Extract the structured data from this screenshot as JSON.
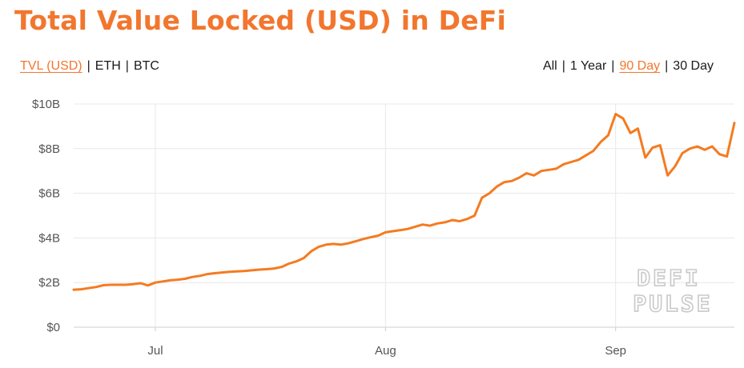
{
  "title": "Total Value Locked (USD) in DeFi",
  "unit_toggle": {
    "items": [
      {
        "label": "TVL (USD)",
        "active": true
      },
      {
        "label": "ETH",
        "active": false
      },
      {
        "label": "BTC",
        "active": false
      }
    ]
  },
  "range_toggle": {
    "items": [
      {
        "label": "All",
        "active": false
      },
      {
        "label": "1 Year",
        "active": false
      },
      {
        "label": "90 Day",
        "active": true
      },
      {
        "label": "30 Day",
        "active": false
      }
    ]
  },
  "watermark": [
    "DEFI",
    "PULSE"
  ],
  "colors": {
    "accent": "#f47b20",
    "title": "#f2762e"
  },
  "chart_data": {
    "type": "line",
    "title": "Total Value Locked (USD) in DeFi",
    "xlabel": "",
    "ylabel": "",
    "ylim": [
      0,
      10
    ],
    "xlim": [
      "2020-06-20",
      "2020-09-17"
    ],
    "y_ticks": [
      0,
      2,
      4,
      6,
      8,
      10
    ],
    "y_tick_labels": [
      "$0",
      "$2B",
      "$4B",
      "$6B",
      "$8B",
      "$10B"
    ],
    "x_ticks": [
      "2020-07-01",
      "2020-08-01",
      "2020-09-01"
    ],
    "x_tick_labels": [
      "Jul",
      "Aug",
      "Sep"
    ],
    "grid": true,
    "series": [
      {
        "values_unit": "USD billions",
        "x": [
          "2020-06-20",
          "2020-06-21",
          "2020-06-22",
          "2020-06-23",
          "2020-06-24",
          "2020-06-25",
          "2020-06-26",
          "2020-06-27",
          "2020-06-28",
          "2020-06-29",
          "2020-06-30",
          "2020-07-01",
          "2020-07-02",
          "2020-07-03",
          "2020-07-04",
          "2020-07-05",
          "2020-07-06",
          "2020-07-07",
          "2020-07-08",
          "2020-07-09",
          "2020-07-10",
          "2020-07-11",
          "2020-07-12",
          "2020-07-13",
          "2020-07-14",
          "2020-07-15",
          "2020-07-16",
          "2020-07-17",
          "2020-07-18",
          "2020-07-19",
          "2020-07-20",
          "2020-07-21",
          "2020-07-22",
          "2020-07-23",
          "2020-07-24",
          "2020-07-25",
          "2020-07-26",
          "2020-07-27",
          "2020-07-28",
          "2020-07-29",
          "2020-07-30",
          "2020-07-31",
          "2020-08-01",
          "2020-08-02",
          "2020-08-03",
          "2020-08-04",
          "2020-08-05",
          "2020-08-06",
          "2020-08-07",
          "2020-08-08",
          "2020-08-09",
          "2020-08-10",
          "2020-08-11",
          "2020-08-12",
          "2020-08-13",
          "2020-08-14",
          "2020-08-15",
          "2020-08-16",
          "2020-08-17",
          "2020-08-18",
          "2020-08-19",
          "2020-08-20",
          "2020-08-21",
          "2020-08-22",
          "2020-08-23",
          "2020-08-24",
          "2020-08-25",
          "2020-08-26",
          "2020-08-27",
          "2020-08-28",
          "2020-08-29",
          "2020-08-30",
          "2020-08-31",
          "2020-09-01",
          "2020-09-02",
          "2020-09-03",
          "2020-09-04",
          "2020-09-05",
          "2020-09-06",
          "2020-09-07",
          "2020-09-08",
          "2020-09-09",
          "2020-09-10",
          "2020-09-11",
          "2020-09-12",
          "2020-09-13",
          "2020-09-14",
          "2020-09-15",
          "2020-09-16",
          "2020-09-17"
        ],
        "values": [
          1.68,
          1.7,
          1.75,
          1.8,
          1.88,
          1.9,
          1.9,
          1.9,
          1.93,
          1.97,
          1.87,
          2.0,
          2.05,
          2.1,
          2.13,
          2.17,
          2.25,
          2.3,
          2.38,
          2.42,
          2.45,
          2.48,
          2.5,
          2.52,
          2.55,
          2.58,
          2.6,
          2.63,
          2.7,
          2.85,
          2.95,
          3.1,
          3.4,
          3.6,
          3.7,
          3.73,
          3.7,
          3.76,
          3.85,
          3.95,
          4.03,
          4.1,
          4.25,
          4.3,
          4.35,
          4.4,
          4.5,
          4.6,
          4.55,
          4.65,
          4.7,
          4.8,
          4.75,
          4.85,
          5.0,
          5.8,
          6.0,
          6.3,
          6.5,
          6.55,
          6.7,
          6.9,
          6.8,
          7.0,
          7.05,
          7.1,
          7.3,
          7.4,
          7.5,
          7.7,
          7.9,
          8.3,
          8.6,
          9.55,
          9.35,
          8.7,
          8.9,
          7.6,
          8.05,
          8.15,
          6.8,
          7.2,
          7.8,
          8.0,
          8.1,
          7.95,
          8.1,
          7.75,
          7.65,
          9.15
        ]
      }
    ]
  }
}
